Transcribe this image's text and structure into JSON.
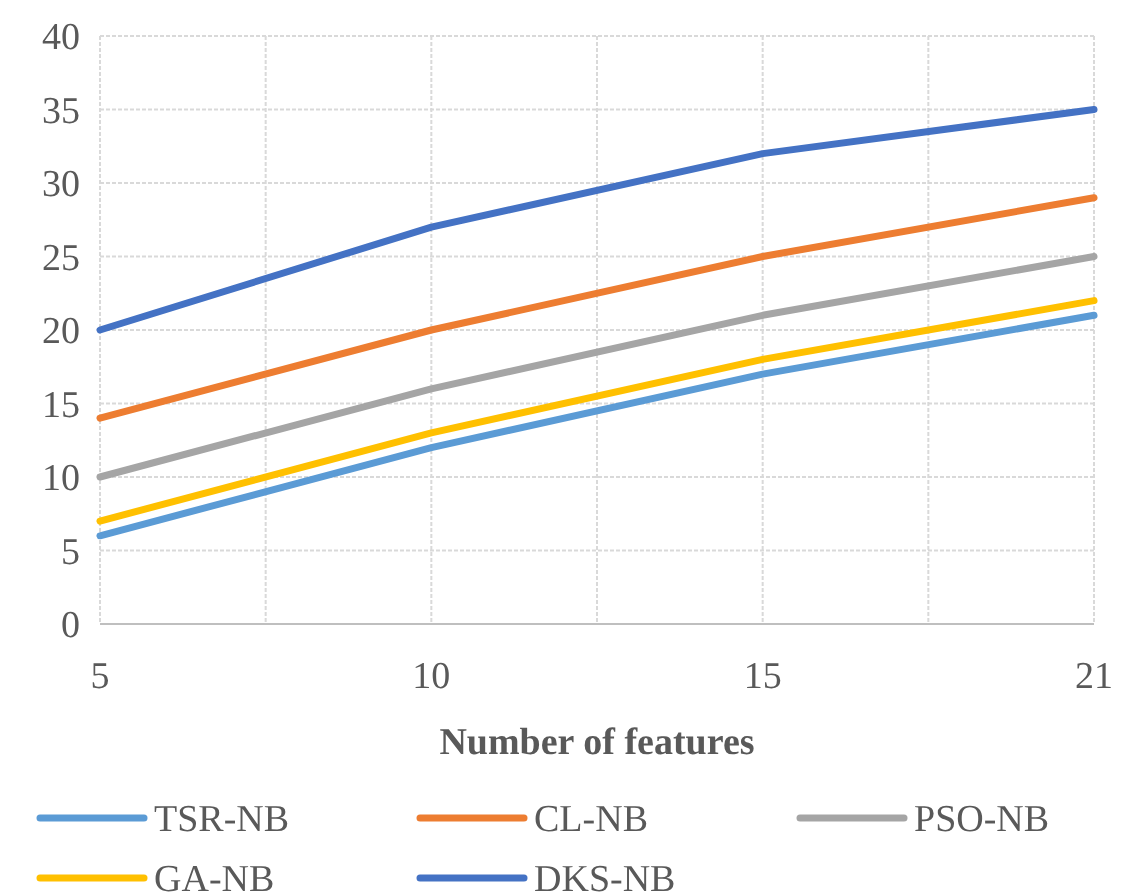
{
  "chart_data": {
    "type": "line",
    "xlabel": "Number of features",
    "categories": [
      "5",
      "10",
      "15",
      "21"
    ],
    "series": [
      {
        "name": "TSR-NB",
        "color": "#5b9bd5",
        "values": [
          6,
          12,
          17,
          21
        ]
      },
      {
        "name": "CL-NB",
        "color": "#ed7d31",
        "values": [
          14,
          20,
          25,
          29
        ]
      },
      {
        "name": "PSO-NB",
        "color": "#a5a5a5",
        "values": [
          10,
          16,
          21,
          25
        ]
      },
      {
        "name": "GA-NB",
        "color": "#ffc000",
        "values": [
          7,
          13,
          18,
          22
        ]
      },
      {
        "name": "DKS-NB",
        "color": "#4472c4",
        "values": [
          20,
          27,
          32,
          35
        ]
      }
    ],
    "ylim": [
      0,
      40
    ],
    "yticks": [
      0,
      5,
      10,
      15,
      20,
      25,
      30,
      35,
      40
    ],
    "grid": true,
    "legend": "bottom",
    "marker": "none",
    "line_style": "solid"
  }
}
